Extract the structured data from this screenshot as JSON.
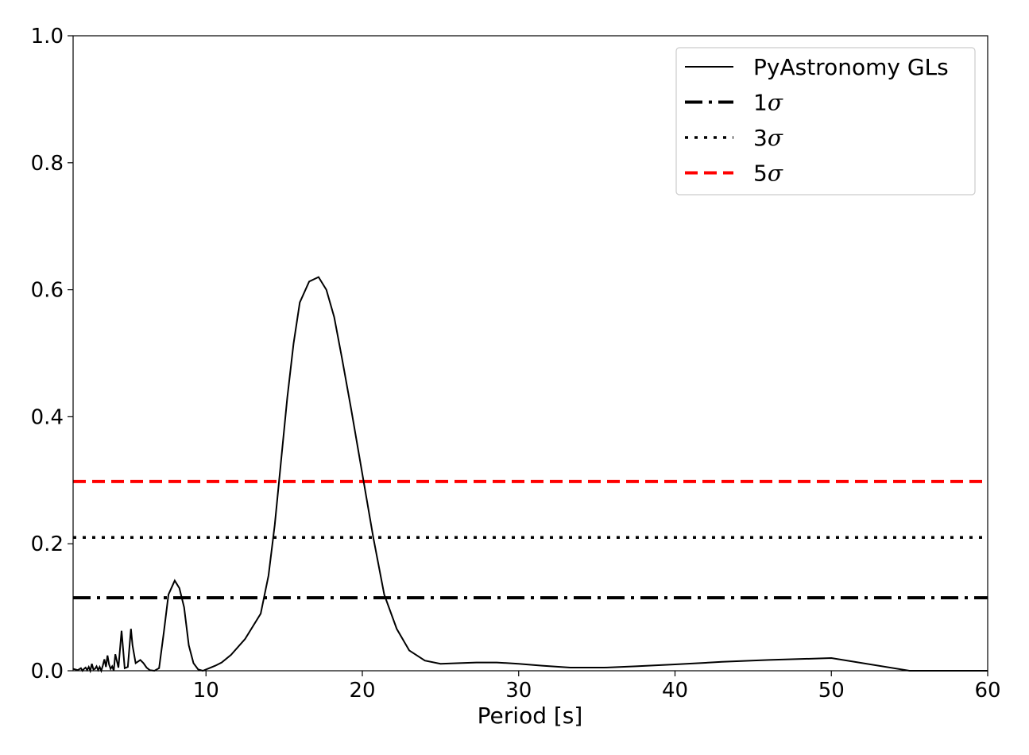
{
  "chart_data": {
    "type": "line",
    "title": "",
    "xlabel": "Period [s]",
    "ylabel": "",
    "xlim": [
      1.5,
      60
    ],
    "ylim": [
      0,
      1.0
    ],
    "grid": false,
    "legend_position": "top-right",
    "x_ticks": [
      10,
      20,
      30,
      40,
      50,
      60
    ],
    "y_ticks": [
      0.0,
      0.2,
      0.4,
      0.6,
      0.8,
      1.0
    ],
    "x_tick_labels": [
      "10",
      "20",
      "30",
      "40",
      "50",
      "60"
    ],
    "y_tick_labels": [
      "0.0",
      "0.2",
      "0.4",
      "0.6",
      "0.8",
      "1.0"
    ],
    "series": [
      {
        "name": "PyAstronomy GLs",
        "color": "#000000",
        "style": "solid",
        "x": [
          1.5,
          1.8,
          2.0,
          2.1,
          2.2,
          2.3,
          2.4,
          2.5,
          2.6,
          2.7,
          2.8,
          2.9,
          3.0,
          3.1,
          3.2,
          3.3,
          3.4,
          3.5,
          3.6,
          3.7,
          3.8,
          3.9,
          4.0,
          4.1,
          4.2,
          4.4,
          4.6,
          4.8,
          5.0,
          5.2,
          5.3,
          5.5,
          5.8,
          6.0,
          6.2,
          6.4,
          6.7,
          7.0,
          7.3,
          7.6,
          8.0,
          8.3,
          8.6,
          8.9,
          9.2,
          9.5,
          9.8,
          10.2,
          10.6,
          11.0,
          11.6,
          12.5,
          13.5,
          14.0,
          14.4,
          14.8,
          15.2,
          15.6,
          16.0,
          16.6,
          17.2,
          17.7,
          18.2,
          18.7,
          19.3,
          20.0,
          20.7,
          21.4,
          22.2,
          23.0,
          24.0,
          25.0,
          26.2,
          27.3,
          28.6,
          30.0,
          31.5,
          33.3,
          35.5,
          37.5,
          40.0,
          43.0,
          46.0,
          50.0,
          55.0,
          60.0
        ],
        "values": [
          0.003,
          0.001,
          0.004,
          0.0,
          0.003,
          0.005,
          0.001,
          0.006,
          0.0,
          0.011,
          0.002,
          0.003,
          0.007,
          0.001,
          0.006,
          0.0,
          0.008,
          0.018,
          0.006,
          0.024,
          0.01,
          0.003,
          0.007,
          0.0,
          0.026,
          0.005,
          0.063,
          0.004,
          0.006,
          0.066,
          0.04,
          0.012,
          0.017,
          0.012,
          0.005,
          0.001,
          0.0,
          0.004,
          0.06,
          0.12,
          0.142,
          0.13,
          0.1,
          0.04,
          0.012,
          0.002,
          0.0,
          0.004,
          0.008,
          0.013,
          0.025,
          0.05,
          0.09,
          0.15,
          0.23,
          0.33,
          0.43,
          0.515,
          0.58,
          0.613,
          0.62,
          0.6,
          0.557,
          0.492,
          0.41,
          0.31,
          0.21,
          0.12,
          0.066,
          0.032,
          0.016,
          0.011,
          0.012,
          0.013,
          0.013,
          0.011,
          0.008,
          0.005,
          0.005,
          0.007,
          0.01,
          0.014,
          0.017,
          0.02,
          0.0,
          0.0
        ]
      },
      {
        "name": "1σ",
        "label_prefix": "1",
        "label_symbol": "σ",
        "color": "#000000",
        "style": "dashdot",
        "y": 0.115
      },
      {
        "name": "3σ",
        "label_prefix": "3",
        "label_symbol": "σ",
        "color": "#000000",
        "style": "dotted",
        "y": 0.21
      },
      {
        "name": "5σ",
        "label_prefix": "5",
        "label_symbol": "σ",
        "color": "#ff0000",
        "style": "dashed",
        "y": 0.298
      }
    ]
  }
}
